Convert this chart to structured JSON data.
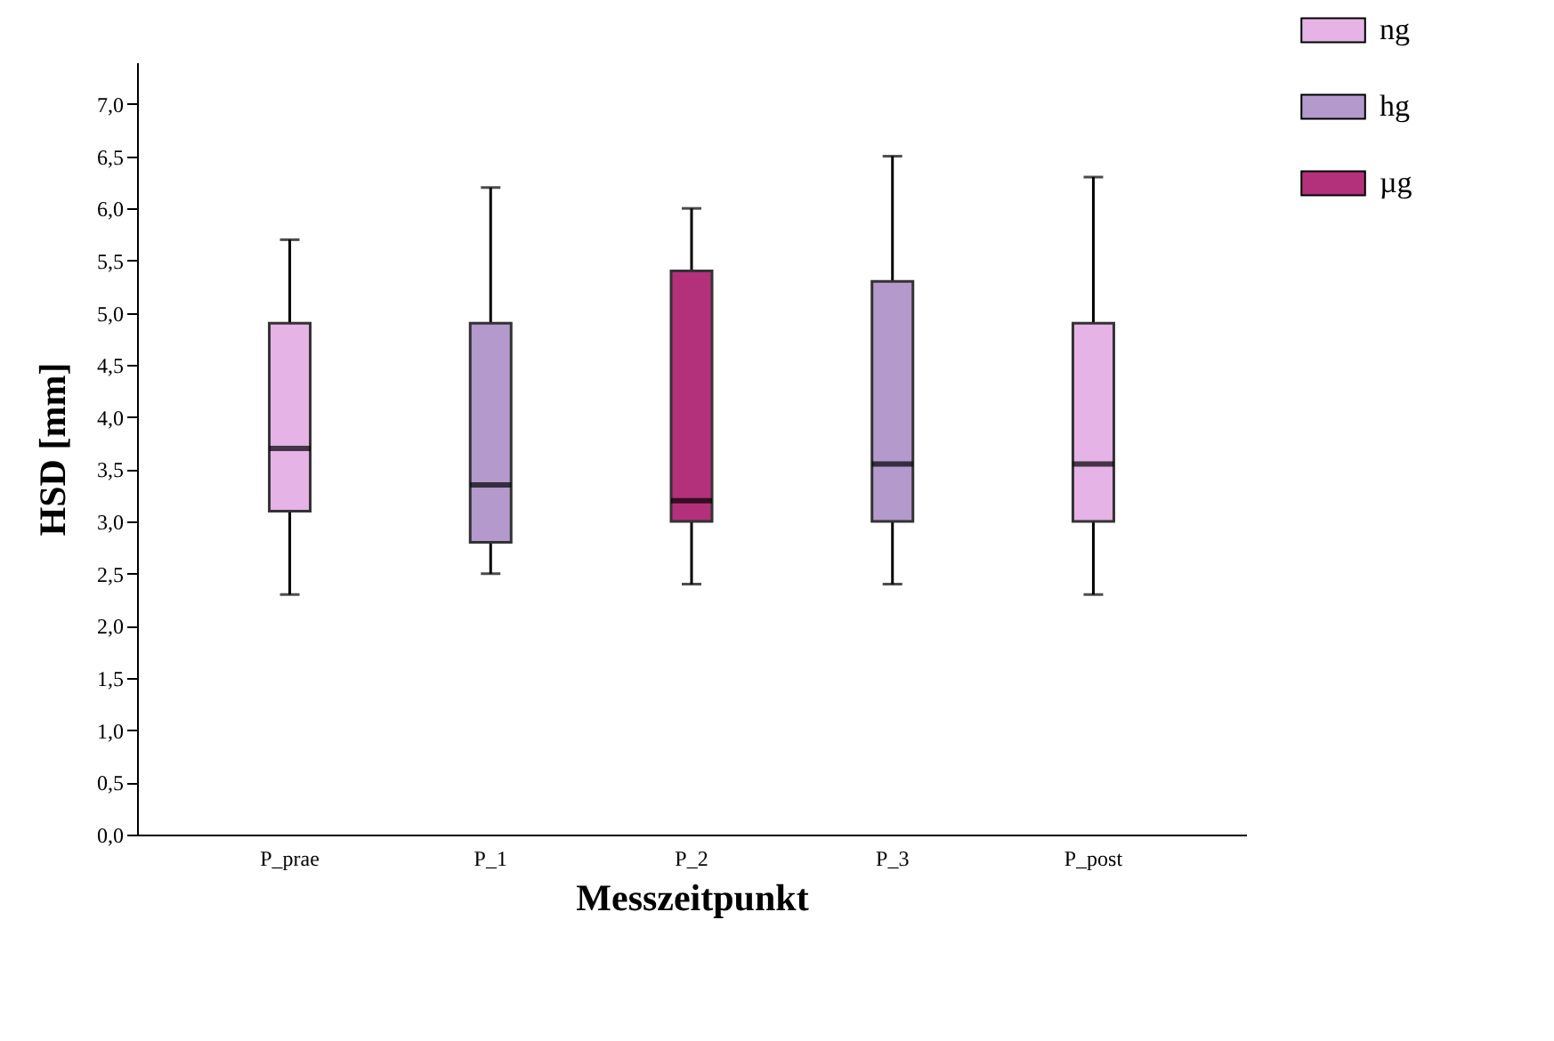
{
  "chart_data": {
    "type": "box",
    "xlabel": "Messzeitpunkt",
    "ylabel": "HSD [mm]",
    "categories": [
      "P_prae",
      "P_1",
      "P_2",
      "P_3",
      "P_post"
    ],
    "ylim": [
      0,
      7.4
    ],
    "yticks": [
      {
        "value": 0,
        "label": "0,0"
      },
      {
        "value": 0.5,
        "label": "0,5"
      },
      {
        "value": 1,
        "label": "1,0"
      },
      {
        "value": 1.5,
        "label": "1,5"
      },
      {
        "value": 2,
        "label": "2,0"
      },
      {
        "value": 2.5,
        "label": "2,5"
      },
      {
        "value": 3,
        "label": "3,0"
      },
      {
        "value": 3.5,
        "label": "3,5"
      },
      {
        "value": 4,
        "label": "4,0"
      },
      {
        "value": 4.5,
        "label": "4,5"
      },
      {
        "value": 5,
        "label": "5,0"
      },
      {
        "value": 5.5,
        "label": "5,5"
      },
      {
        "value": 6,
        "label": "6,0"
      },
      {
        "value": 6.5,
        "label": "6,5"
      },
      {
        "value": 7,
        "label": "7,0"
      }
    ],
    "grid": false,
    "legend": "top right",
    "series": [
      {
        "name": "ng",
        "color": "#e6b3e6",
        "boxes": [
          {
            "low": 2.3,
            "q1": 3.1,
            "median": 3.7,
            "q3": 4.9,
            "high": 5.7
          },
          null,
          null,
          null,
          {
            "low": 2.3,
            "q1": 3.0,
            "median": 3.55,
            "q3": 4.9,
            "high": 6.3
          }
        ]
      },
      {
        "name": "hg",
        "color": "#b399cc",
        "boxes": [
          null,
          {
            "low": 2.5,
            "q1": 2.8,
            "median": 3.35,
            "q3": 4.9,
            "high": 6.2
          },
          null,
          {
            "low": 2.4,
            "q1": 3.0,
            "median": 3.55,
            "q3": 5.3,
            "high": 6.5
          },
          null
        ]
      },
      {
        "name": "µg",
        "color": "#b3307a",
        "boxes": [
          null,
          null,
          {
            "low": 2.4,
            "q1": 3.0,
            "median": 3.2,
            "q3": 5.4,
            "high": 6.0
          },
          null,
          null
        ]
      }
    ]
  }
}
